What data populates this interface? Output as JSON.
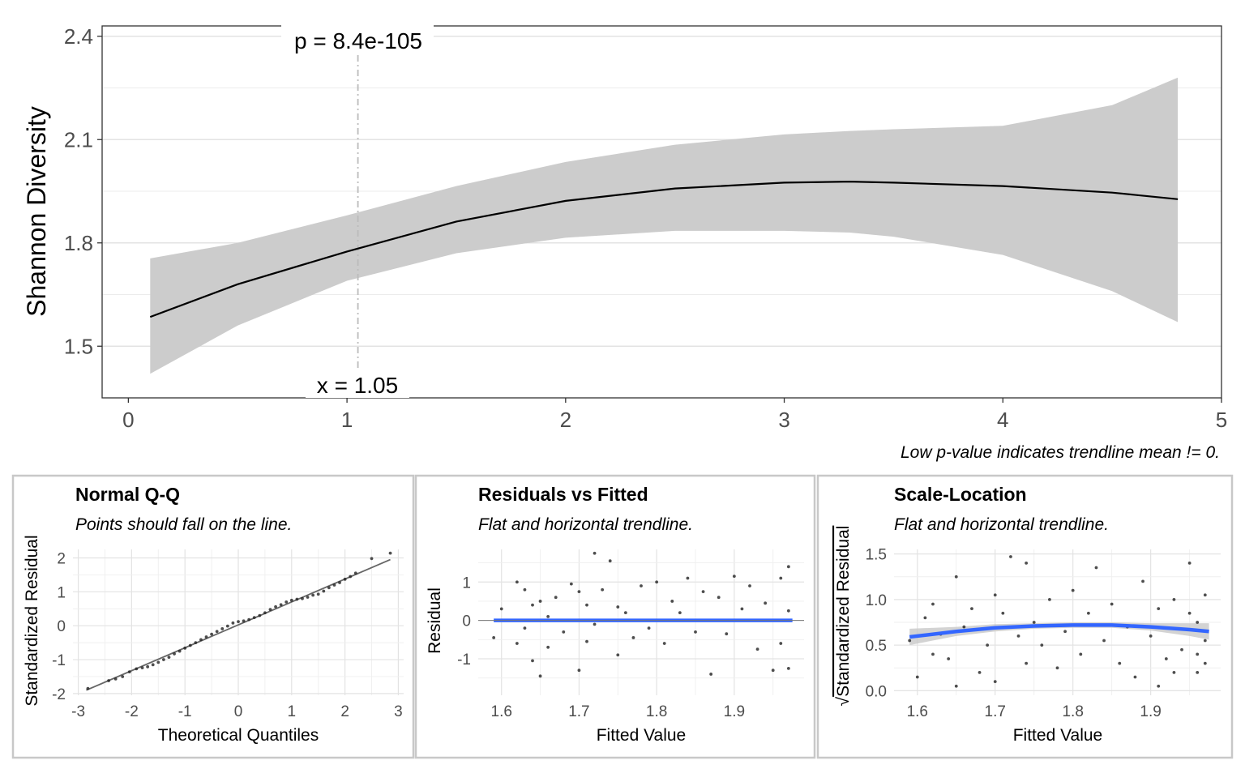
{
  "chart_data": [
    {
      "type": "line",
      "title": "",
      "xlabel": "",
      "ylabel": "Shannon Diversity",
      "xlim": [
        -0.12,
        5.0
      ],
      "ylim": [
        1.35,
        2.43
      ],
      "x_ticks": [
        0,
        1,
        2,
        3,
        4,
        5
      ],
      "y_ticks": [
        1.5,
        1.8,
        2.1,
        2.4
      ],
      "x_tick_labels": [
        "0",
        "1",
        "2",
        "3",
        "4",
        "5"
      ],
      "y_tick_labels": [
        "1.5",
        "1.8",
        "2.1",
        "2.4"
      ],
      "grid": true,
      "series": [
        {
          "x": [
            0.1,
            0.5,
            1.0,
            1.5,
            2.0,
            2.5,
            3.0,
            3.3,
            3.5,
            4.0,
            4.5,
            4.8
          ],
          "y": [
            1.585,
            1.68,
            1.775,
            1.862,
            1.922,
            1.958,
            1.975,
            1.978,
            1.975,
            1.965,
            1.946,
            1.927
          ],
          "lower": [
            1.42,
            1.56,
            1.69,
            1.77,
            1.815,
            1.835,
            1.835,
            1.83,
            1.818,
            1.765,
            1.66,
            1.57
          ],
          "upper": [
            1.755,
            1.8,
            1.88,
            1.965,
            2.035,
            2.085,
            2.115,
            2.125,
            2.13,
            2.14,
            2.2,
            2.28
          ]
        }
      ],
      "vline": {
        "x": 1.05,
        "label": "x = 1.05"
      },
      "annotation": "p = 8.4e-105",
      "caption": "Low p-value indicates trendline mean != 0."
    },
    {
      "type": "scatter",
      "title": "Normal Q-Q",
      "subtitle": "Points should fall on the line.",
      "xlabel": "Theoretical Quantiles",
      "ylabel": "Standardized Residual",
      "xlim": [
        -3.1,
        3.1
      ],
      "ylim": [
        -2.05,
        2.25
      ],
      "x_ticks": [
        -3,
        -2,
        -1,
        0,
        1,
        2,
        3
      ],
      "x_tick_labels": [
        "-3",
        "-2",
        "-1",
        "0",
        "1",
        "2",
        "3"
      ],
      "y_ticks": [
        -2,
        -1,
        0,
        1,
        2
      ],
      "y_tick_labels": [
        "-2",
        "-1",
        "0",
        "1",
        "2"
      ],
      "reference_line": {
        "x": [
          -2.85,
          2.85
        ],
        "y": [
          -1.9,
          1.95
        ]
      },
      "points": {
        "x": [
          -2.82,
          -2.43,
          -2.3,
          -2.17,
          -2.04,
          -1.91,
          -1.8,
          -1.7,
          -1.6,
          -1.5,
          -1.4,
          -1.3,
          -1.2,
          -1.1,
          -1.0,
          -0.9,
          -0.8,
          -0.7,
          -0.6,
          -0.5,
          -0.4,
          -0.3,
          -0.2,
          -0.1,
          0.0,
          0.1,
          0.2,
          0.3,
          0.4,
          0.5,
          0.6,
          0.7,
          0.8,
          0.9,
          1.0,
          1.1,
          1.2,
          1.3,
          1.4,
          1.5,
          1.6,
          1.7,
          1.8,
          1.9,
          2.0,
          2.1,
          2.2,
          2.5,
          2.85
        ],
        "y": [
          -1.85,
          -1.62,
          -1.57,
          -1.5,
          -1.36,
          -1.27,
          -1.24,
          -1.21,
          -1.15,
          -1.08,
          -1.0,
          -0.93,
          -0.83,
          -0.75,
          -0.66,
          -0.58,
          -0.5,
          -0.41,
          -0.33,
          -0.25,
          -0.17,
          -0.09,
          -0.01,
          0.08,
          0.12,
          0.14,
          0.18,
          0.24,
          0.3,
          0.38,
          0.48,
          0.56,
          0.62,
          0.7,
          0.75,
          0.78,
          0.8,
          0.84,
          0.9,
          0.93,
          1.02,
          1.12,
          1.2,
          1.27,
          1.37,
          1.45,
          1.55,
          1.98,
          2.14
        ]
      }
    },
    {
      "type": "scatter",
      "title": "Residuals vs Fitted",
      "subtitle": "Flat and horizontal trendline.",
      "xlabel": "Fitted Value",
      "ylabel": "Residual",
      "xlim": [
        1.57,
        1.99
      ],
      "ylim": [
        -1.95,
        1.85
      ],
      "x_ticks": [
        1.6,
        1.7,
        1.8,
        1.9
      ],
      "x_tick_labels": [
        "1.6",
        "1.7",
        "1.8",
        "1.9"
      ],
      "y_ticks": [
        -1,
        0,
        1
      ],
      "y_tick_labels": [
        "-1",
        "0",
        "1"
      ],
      "trend": {
        "x": [
          1.59,
          1.975
        ],
        "y": [
          0,
          0
        ]
      },
      "points": {
        "x": [
          1.59,
          1.6,
          1.62,
          1.62,
          1.63,
          1.63,
          1.64,
          1.64,
          1.65,
          1.65,
          1.66,
          1.66,
          1.67,
          1.68,
          1.69,
          1.7,
          1.7,
          1.71,
          1.71,
          1.72,
          1.72,
          1.73,
          1.74,
          1.75,
          1.75,
          1.76,
          1.77,
          1.78,
          1.79,
          1.8,
          1.81,
          1.82,
          1.83,
          1.84,
          1.85,
          1.86,
          1.87,
          1.88,
          1.89,
          1.9,
          1.91,
          1.92,
          1.93,
          1.94,
          1.95,
          1.96,
          1.96,
          1.97,
          1.97,
          1.97
        ],
        "y": [
          -0.45,
          0.3,
          1.0,
          -0.6,
          0.8,
          -0.2,
          -1.05,
          0.4,
          0.5,
          -1.45,
          0.1,
          -0.7,
          0.6,
          -0.3,
          0.95,
          -1.3,
          0.75,
          0.4,
          -0.55,
          1.75,
          -0.1,
          0.8,
          1.55,
          -0.9,
          0.35,
          0.2,
          -0.45,
          0.9,
          -0.2,
          1.0,
          -0.6,
          0.5,
          0.2,
          1.1,
          -0.3,
          0.75,
          -1.4,
          0.6,
          -0.35,
          1.15,
          0.3,
          0.9,
          -0.75,
          0.45,
          -1.3,
          1.1,
          -0.6,
          1.4,
          0.25,
          -1.25
        ]
      }
    },
    {
      "type": "scatter",
      "title": "Scale-Location",
      "subtitle": "Flat and horizontal trendline.",
      "xlabel": "Fitted Value",
      "ylabel": "Standardized Residual",
      "ylabel_prefix": "√",
      "xlim": [
        1.57,
        1.99
      ],
      "ylim": [
        -0.05,
        1.55
      ],
      "x_ticks": [
        1.6,
        1.7,
        1.8,
        1.9
      ],
      "x_tick_labels": [
        "1.6",
        "1.7",
        "1.8",
        "1.9"
      ],
      "y_ticks": [
        0.0,
        0.5,
        1.0,
        1.5
      ],
      "y_tick_labels": [
        "0.0",
        "0.5",
        "1.0",
        "1.5"
      ],
      "trend": {
        "x": [
          1.59,
          1.65,
          1.7,
          1.75,
          1.8,
          1.85,
          1.9,
          1.95,
          1.975
        ],
        "y": [
          0.59,
          0.65,
          0.69,
          0.71,
          0.72,
          0.72,
          0.7,
          0.67,
          0.65
        ],
        "lower": [
          0.5,
          0.6,
          0.65,
          0.68,
          0.69,
          0.69,
          0.66,
          0.6,
          0.56
        ],
        "upper": [
          0.68,
          0.7,
          0.73,
          0.74,
          0.75,
          0.75,
          0.74,
          0.74,
          0.74
        ]
      },
      "points": {
        "x": [
          1.59,
          1.6,
          1.61,
          1.62,
          1.62,
          1.63,
          1.64,
          1.65,
          1.65,
          1.66,
          1.67,
          1.68,
          1.69,
          1.7,
          1.7,
          1.71,
          1.72,
          1.73,
          1.74,
          1.74,
          1.75,
          1.76,
          1.77,
          1.78,
          1.79,
          1.8,
          1.81,
          1.82,
          1.83,
          1.84,
          1.85,
          1.86,
          1.87,
          1.88,
          1.89,
          1.9,
          1.91,
          1.92,
          1.93,
          1.94,
          1.95,
          1.96,
          1.96,
          1.97,
          1.97,
          1.97,
          1.96,
          1.95,
          1.93,
          1.91
        ],
        "y": [
          0.55,
          0.15,
          0.8,
          0.4,
          0.95,
          0.62,
          0.35,
          1.25,
          0.05,
          0.7,
          0.9,
          0.2,
          0.5,
          1.05,
          0.1,
          0.85,
          1.47,
          0.6,
          1.4,
          0.3,
          0.75,
          0.5,
          1.0,
          0.25,
          0.65,
          1.1,
          0.4,
          0.85,
          1.35,
          0.55,
          0.95,
          0.3,
          0.7,
          0.15,
          1.2,
          0.6,
          0.9,
          0.35,
          1.0,
          0.45,
          1.4,
          0.2,
          0.75,
          0.55,
          1.05,
          0.3,
          0.4,
          0.85,
          0.2,
          0.05
        ]
      }
    }
  ]
}
